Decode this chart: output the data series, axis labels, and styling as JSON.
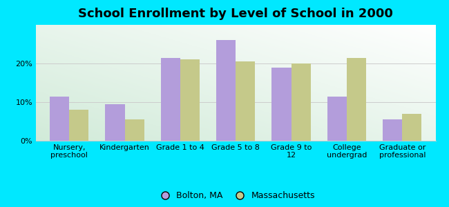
{
  "title": "School Enrollment by Level of School in 2000",
  "categories": [
    "Nursery,\npreschool",
    "Kindergarten",
    "Grade 1 to 4",
    "Grade 5 to 8",
    "Grade 9 to\n12",
    "College\nundergrad",
    "Graduate or\nprofessional"
  ],
  "bolton_values": [
    11.5,
    9.5,
    21.5,
    26.0,
    19.0,
    11.5,
    5.5
  ],
  "mass_values": [
    8.0,
    5.5,
    21.0,
    20.5,
    20.0,
    21.5,
    7.0
  ],
  "bolton_color": "#b39ddb",
  "mass_color": "#c5c98a",
  "legend_labels": [
    "Bolton, MA",
    "Massachusetts"
  ],
  "ylim": [
    0,
    30
  ],
  "yticks": [
    0,
    10,
    20
  ],
  "ytick_labels": [
    "0%",
    "10%",
    "20%"
  ],
  "background_color": "#00e8ff",
  "plot_bg_bottom_left": "#d4edda",
  "plot_bg_top_right": "#f8fffa",
  "grid_color": "#cccccc",
  "bar_width": 0.35,
  "title_fontsize": 13,
  "tick_fontsize": 8,
  "legend_fontsize": 9
}
